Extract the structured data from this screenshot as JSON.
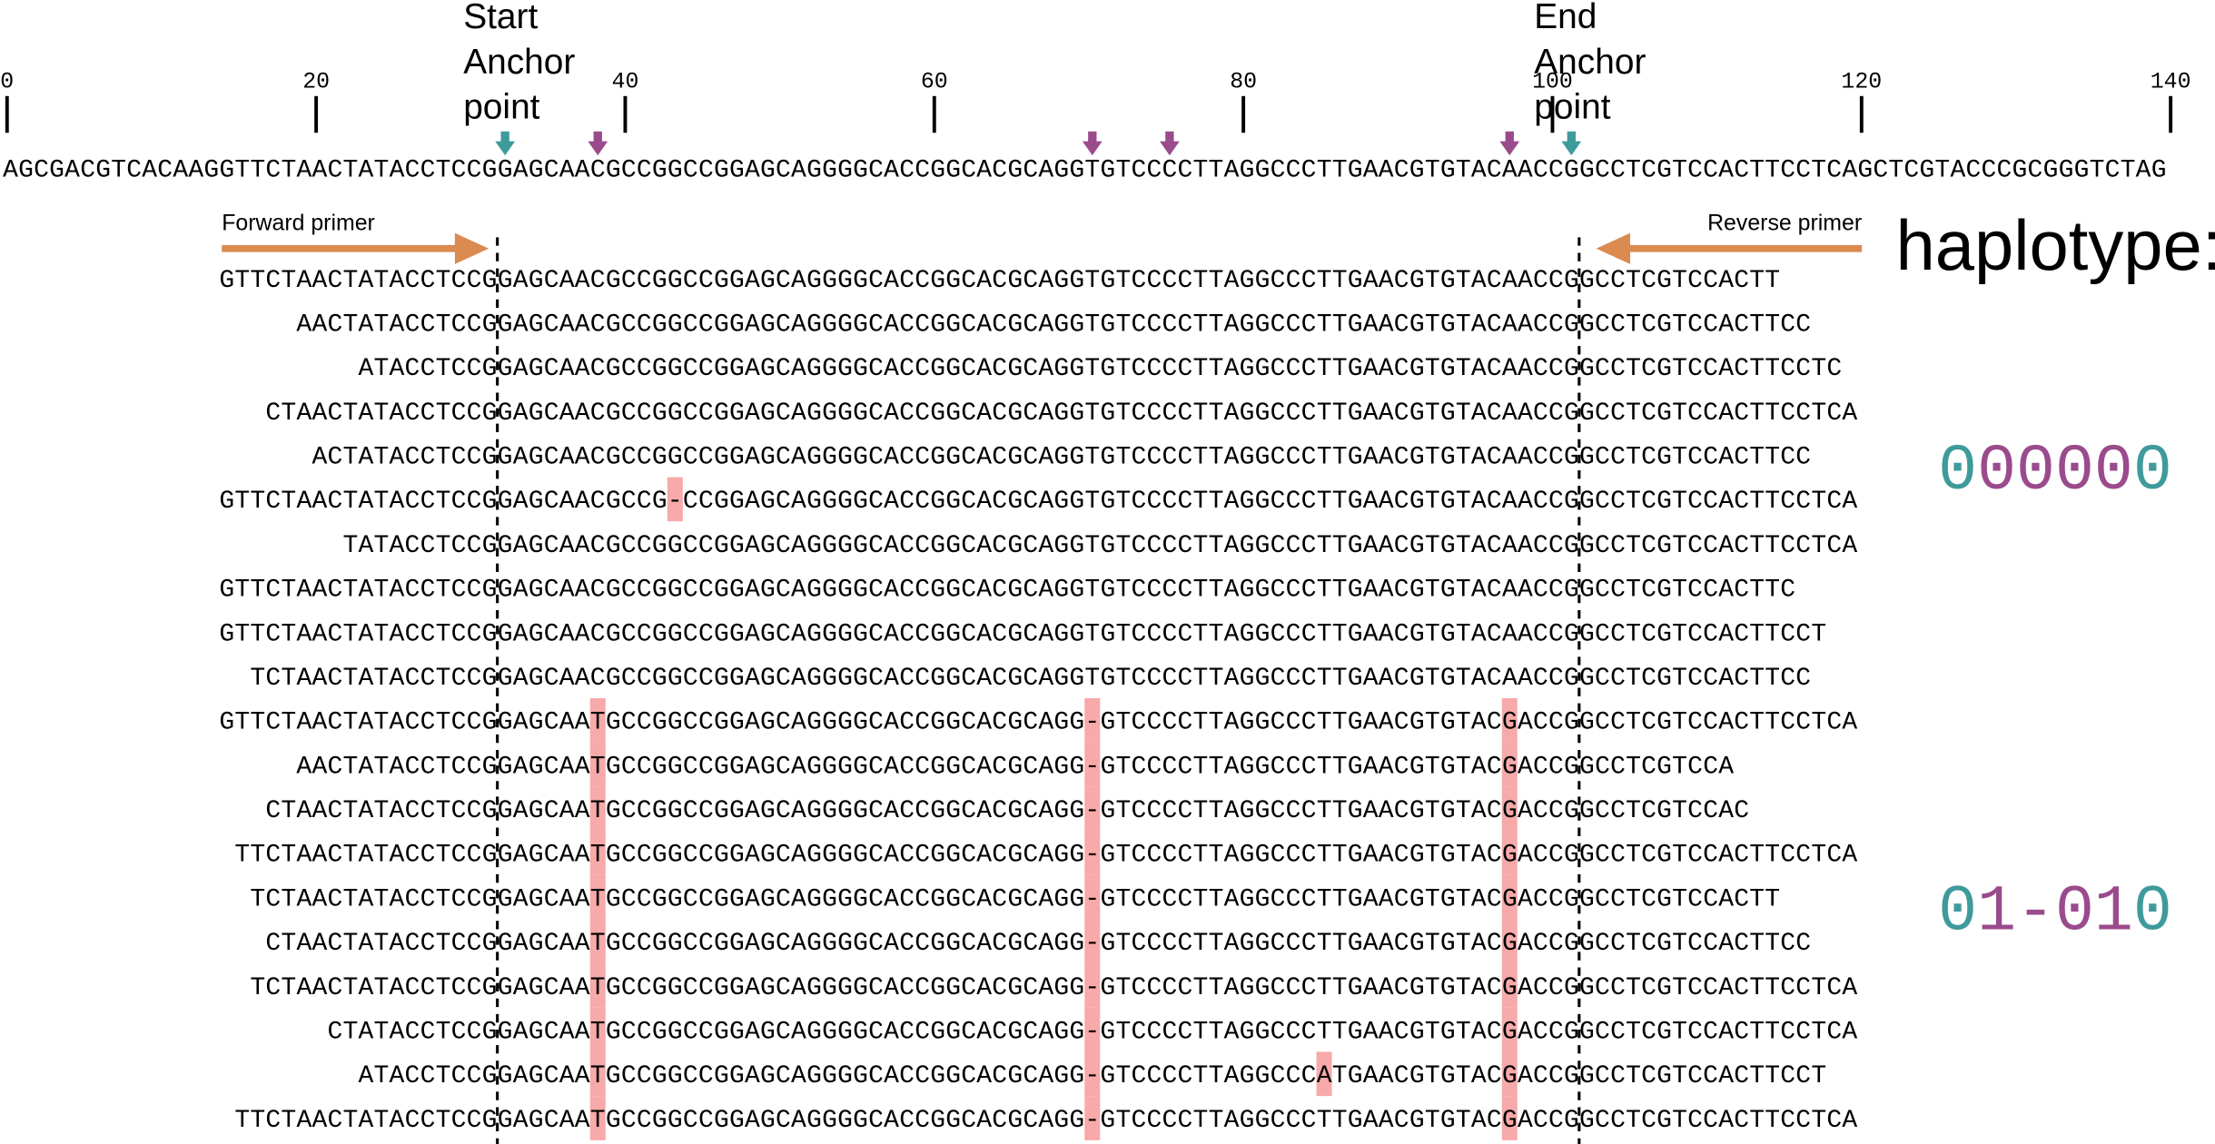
{
  "ruler": {
    "ticks": [
      0,
      20,
      40,
      60,
      80,
      100,
      120,
      140
    ]
  },
  "annotations": {
    "start_anchor": [
      "Start",
      "Anchor",
      "point"
    ],
    "end_anchor": [
      "End",
      "Anchor",
      "point"
    ]
  },
  "reference": "AGCGACGTCACAAGGTTCTAACTATACCTCCGGAGCAACGCCGGCCGGAGCAGGGGCACCGGCACGCAGGTGTCCCCTTAGGCCCTTGAACGTGTACAACCGGCCTCGTCCACTTCCTCAGCTCGTACCCGCGGGTCTAG",
  "anchors": [
    32,
    101
  ],
  "variant_sites": [
    38,
    70,
    75,
    97
  ],
  "anchor_color": "#3f9a9b",
  "site_color": "#9a4b8c",
  "highlight_color": "#f8a9a9",
  "primers": {
    "forward": "Forward primer",
    "reverse": "Reverse primer",
    "color": "#db8a50"
  },
  "haplotype_label": "haplotype:",
  "reads": [
    "GTTCTAACTATACCTCCGGAGCAACGCCGGCCGGAGCAGGGGCACCGGCACGCAGGTGTCCCCTTAGGCCCTTGAACGTGTACAACCGGCCTCGTCCACTT",
    "AACTATACCTCCGGAGCAACGCCGGCCGGAGCAGGGGCACCGGCACGCAGGTGTCCCCTTAGGCCCTTGAACGTGTACAACCGGCCTCGTCCACTTCC",
    "ATACCTCCGGAGCAACGCCGGCCGGAGCAGGGGCACCGGCACGCAGGTGTCCCCTTAGGCCCTTGAACGTGTACAACCGGCCTCGTCCACTTCCTC",
    "CTAACTATACCTCCGGAGCAACGCCGGCCGGAGCAGGGGCACCGGCACGCAGGTGTCCCCTTAGGCCCTTGAACGTGTACAACCGGCCTCGTCCACTTCCTCA",
    "ACTATACCTCCGGAGCAACGCCGGCCGGAGCAGGGGCACCGGCACGCAGGTGTCCCCTTAGGCCCTTGAACGTGTACAACCGGCCTCGTCCACTTCC",
    "GTTCTAACTATACCTCCGGAGCAACGCCG-CCGGAGCAGGGGCACCGGCACGCAGGTGTCCCCTTAGGCCCTTGAACGTGTACAACCGGCCTCGTCCACTTCCTCA",
    "TATACCTCCGGAGCAACGCCGGCCGGAGCAGGGGCACCGGCACGCAGGTGTCCCCTTAGGCCCTTGAACGTGTACAACCGGCCTCGTCCACTTCCTCA",
    "GTTCTAACTATACCTCCGGAGCAACGCCGGCCGGAGCAGGGGCACCGGCACGCAGGTGTCCCCTTAGGCCCTTGAACGTGTACAACCGGCCTCGTCCACTTC",
    "GTTCTAACTATACCTCCGGAGCAACGCCGGCCGGAGCAGGGGCACCGGCACGCAGGTGTCCCCTTAGGCCCTTGAACGTGTACAACCGGCCTCGTCCACTTCCT",
    "TCTAACTATACCTCCGGAGCAACGCCGGCCGGAGCAGGGGCACCGGCACGCAGGTGTCCCCTTAGGCCCTTGAACGTGTACAACCGGCCTCGTCCACTTCC",
    "GTTCTAACTATACCTCCGGAGCAATGCCGGCCGGAGCAGGGGCACCGGCACGCAGG-GTCCCCTTAGGCCCTTGAACGTGTACGACCGGCCTCGTCCACTTCCTCA",
    "AACTATACCTCCGGAGCAATGCCGGCCGGAGCAGGGGCACCGGCACGCAGG-GTCCCCTTAGGCCCTTGAACGTGTACGACCGGCCTCGTCCA",
    "CTAACTATACCTCCGGAGCAATGCCGGCCGGAGCAGGGGCACCGGCACGCAGG-GTCCCCTTAGGCCCTTGAACGTGTACGACCGGCCTCGTCCAC",
    "TTCTAACTATACCTCCGGAGCAATGCCGGCCGGAGCAGGGGCACCGGCACGCAGG-GTCCCCTTAGGCCCTTGAACGTGTACGACCGGCCTCGTCCACTTCCTCA",
    "TCTAACTATACCTCCGGAGCAATGCCGGCCGGAGCAGGGGCACCGGCACGCAGG-GTCCCCTTAGGCCCTTGAACGTGTACGACCGGCCTCGTCCACTT",
    "CTAACTATACCTCCGGAGCAATGCCGGCCGGAGCAGGGGCACCGGCACGCAGG-GTCCCCTTAGGCCCTTGAACGTGTACGACCGGCCTCGTCCACTTCC",
    "TCTAACTATACCTCCGGAGCAATGCCGGCCGGAGCAGGGGCACCGGCACGCAGG-GTCCCCTTAGGCCCTTGAACGTGTACGACCGGCCTCGTCCACTTCCTCA",
    "CTATACCTCCGGAGCAATGCCGGCCGGAGCAGGGGCACCGGCACGCAGG-GTCCCCTTAGGCCCTTGAACGTGTACGACCGGCCTCGTCCACTTCCTCA",
    "ATACCTCCGGAGCAATGCCGGCCGGAGCAGGGGCACCGGCACGCAGG-GTCCCCTTAGGCCCATGAACGTGTACGACCGGCCTCGTCCACTTCCT",
    "TTCTAACTATACCTCCGGAGCAATGCCGGCCGGAGCAGGGGCACCGGCACGCAGG-GTCCCCTTAGGCCCTTGAACGTGTACGACCGGCCTCGTCCACTTCCTCA"
  ],
  "haplotypes": [
    "000000",
    "01-010"
  ]
}
